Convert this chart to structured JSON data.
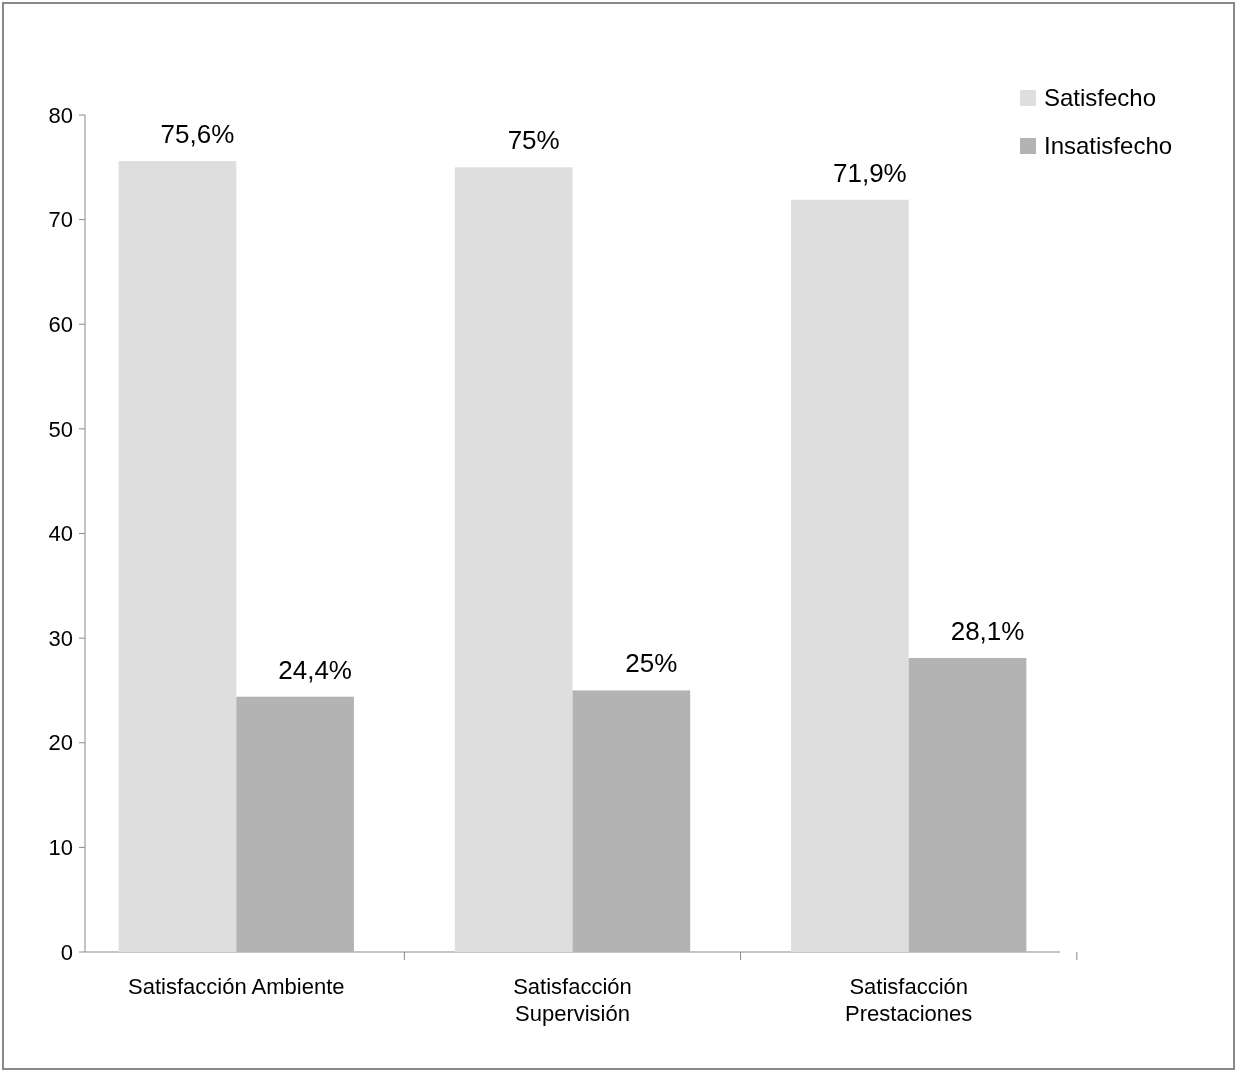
{
  "chart_data": {
    "type": "bar",
    "categories": [
      "Satisfacción Ambiente",
      "Satisfacción Supervisión",
      "Satisfacción Prestaciones"
    ],
    "series": [
      {
        "name": "Satisfecho",
        "color": "#dedede",
        "values": [
          75.6,
          75,
          71.9
        ],
        "value_labels": [
          "75,6%",
          "75%",
          "71,9%"
        ]
      },
      {
        "name": "Insatisfecho",
        "color": "#b3b3b3",
        "values": [
          24.4,
          25,
          28.1
        ],
        "value_labels": [
          "24,4%",
          "25%",
          "28,1%"
        ]
      }
    ],
    "ylim": [
      0,
      80
    ],
    "yticks": [
      0,
      10,
      20,
      30,
      40,
      50,
      60,
      70,
      80
    ],
    "grid": false,
    "legend": "top right"
  }
}
